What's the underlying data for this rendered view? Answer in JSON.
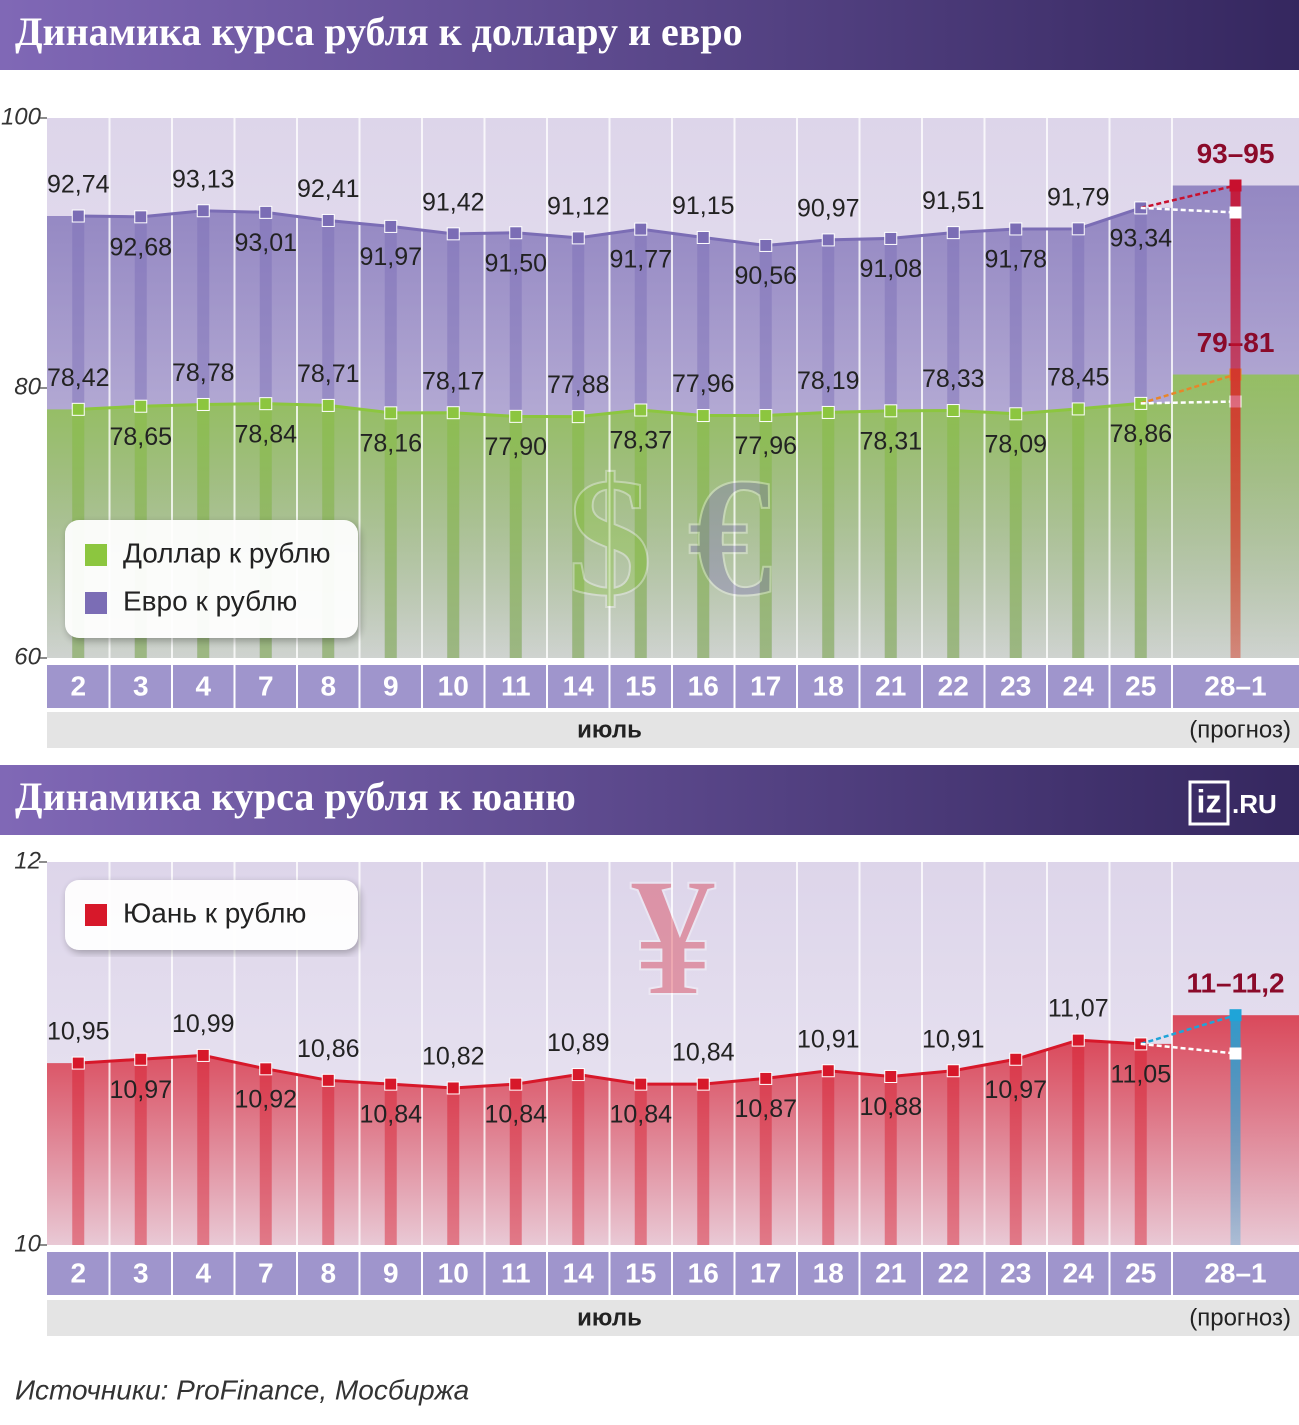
{
  "chart_data": [
    {
      "type": "line",
      "title": "Динамика курса рубля к доллару и евро",
      "categories": [
        "2",
        "3",
        "4",
        "7",
        "8",
        "9",
        "10",
        "11",
        "14",
        "15",
        "16",
        "17",
        "18",
        "21",
        "22",
        "23",
        "24",
        "25",
        "28–1"
      ],
      "month_label": "июль",
      "forecast_note": "(прогноз)",
      "symbols": [
        "$",
        "€"
      ],
      "ylim": [
        60,
        100
      ],
      "yticks": [
        60,
        80,
        100
      ],
      "series": [
        {
          "name": "Доллар к рублю",
          "color": "#8cc63f",
          "forecast_color": "#e8862a",
          "values": [
            78.42,
            78.65,
            78.78,
            78.84,
            78.71,
            78.16,
            78.17,
            77.9,
            77.88,
            78.37,
            77.96,
            77.96,
            78.19,
            78.31,
            78.33,
            78.09,
            78.45,
            78.86,
            null
          ],
          "value_labels": [
            "78,42",
            "78,65",
            "78,78",
            "78,84",
            "78,71",
            "78,16",
            "78,17",
            "77,90",
            "77,88",
            "78,37",
            "77,96",
            "77,96",
            "78,19",
            "78,31",
            "78,33",
            "78,09",
            "78,45",
            "78,86",
            null
          ],
          "forecast": [
            79,
            81
          ],
          "forecast_label": "79–81"
        },
        {
          "name": "Евро к рублю",
          "color": "#7b6db5",
          "forecast_color": "#c8102e",
          "values": [
            92.74,
            92.68,
            93.13,
            93.01,
            92.41,
            91.97,
            91.42,
            91.5,
            91.12,
            91.77,
            91.15,
            90.56,
            90.97,
            91.08,
            91.51,
            91.78,
            91.79,
            93.34,
            null
          ],
          "value_labels": [
            "92,74",
            "92,68",
            "93,13",
            "93,01",
            "92,41",
            "91,97",
            "91,42",
            "91,50",
            "91,12",
            "91,77",
            "91,15",
            "90,56",
            "90,97",
            "91,08",
            "91,51",
            "91,78",
            "91,79",
            "93,34",
            null
          ],
          "forecast": [
            93,
            95
          ],
          "forecast_label": "93–95"
        }
      ]
    },
    {
      "type": "line",
      "title": "Динамика курса рубля к юаню",
      "categories": [
        "2",
        "3",
        "4",
        "7",
        "8",
        "9",
        "10",
        "11",
        "14",
        "15",
        "16",
        "17",
        "18",
        "21",
        "22",
        "23",
        "24",
        "25",
        "28–1"
      ],
      "month_label": "июль",
      "forecast_note": "(прогноз)",
      "symbols": [
        "¥"
      ],
      "ylim": [
        10,
        12
      ],
      "yticks": [
        10,
        12
      ],
      "series": [
        {
          "name": "Юань к рублю",
          "color": "#d7182a",
          "forecast_color": "#1fa4d8",
          "values": [
            10.95,
            10.97,
            10.99,
            10.92,
            10.86,
            10.84,
            10.82,
            10.84,
            10.89,
            10.84,
            10.84,
            10.87,
            10.91,
            10.88,
            10.91,
            10.97,
            11.07,
            11.05,
            null
          ],
          "value_labels": [
            "10,95",
            "10,97",
            "10,99",
            "10,92",
            "10,86",
            "10,84",
            "10,82",
            "10,84",
            "10,89",
            "10,84",
            "10,84",
            "10,87",
            "10,91",
            "10,88",
            "10,91",
            "10,97",
            "11,07",
            "11,05",
            null
          ],
          "forecast": [
            11,
            11.2
          ],
          "forecast_label": "11–11,2"
        }
      ]
    }
  ],
  "logo": {
    "main": "iz",
    "suffix": ".RU"
  },
  "source": "Источники: ProFinance, Мосбиржа"
}
